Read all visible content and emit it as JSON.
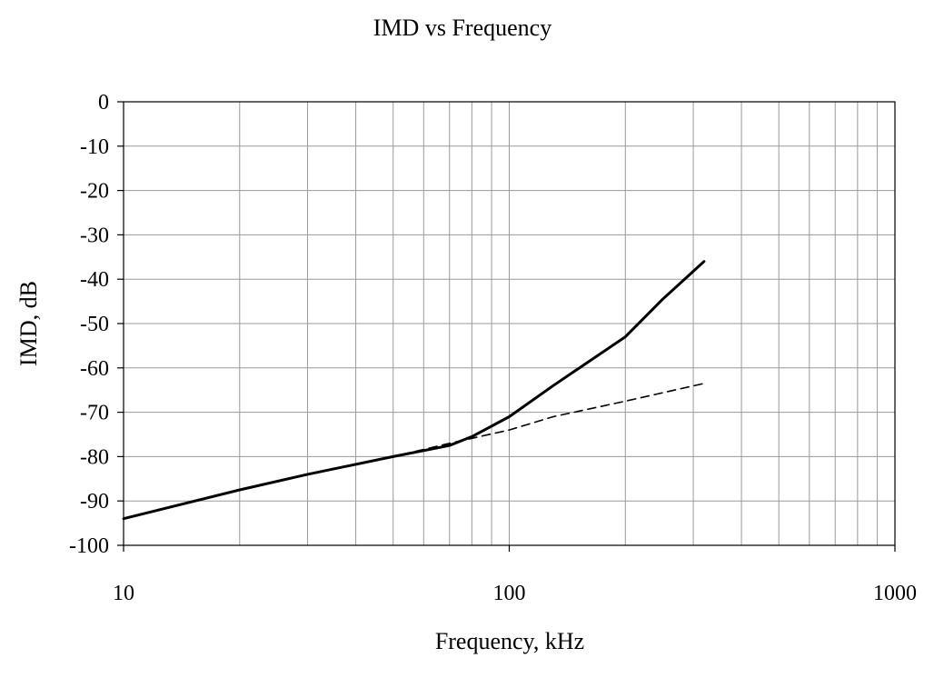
{
  "chart_data": {
    "type": "line",
    "title": "IMD vs Frequency",
    "xlabel": "Frequency, kHz",
    "ylabel": "IMD, dB",
    "xscale": "log",
    "xlim": [
      10,
      1000
    ],
    "ylim": [
      -100,
      0
    ],
    "grid": true,
    "x_ticks": [
      {
        "value": 10,
        "label": "10"
      },
      {
        "value": 100,
        "label": "100"
      },
      {
        "value": 1000,
        "label": "1000"
      }
    ],
    "y_ticks": [
      {
        "value": 0,
        "label": "0"
      },
      {
        "value": -10,
        "label": "-10"
      },
      {
        "value": -20,
        "label": "-20"
      },
      {
        "value": -30,
        "label": "-30"
      },
      {
        "value": -40,
        "label": "-40"
      },
      {
        "value": -50,
        "label": "-50"
      },
      {
        "value": -60,
        "label": "-60"
      },
      {
        "value": -70,
        "label": "-70"
      },
      {
        "value": -80,
        "label": "-80"
      },
      {
        "value": -90,
        "label": "-90"
      },
      {
        "value": -100,
        "label": "-100"
      }
    ],
    "series": [
      {
        "style": "solid",
        "color": "#000000",
        "x": [
          10,
          20,
          30,
          50,
          70,
          80,
          100,
          130,
          200,
          250,
          320
        ],
        "y": [
          -94,
          -87.5,
          -84,
          -80,
          -77.5,
          -75.5,
          -71,
          -64,
          -53,
          -44.5,
          -36
        ]
      },
      {
        "style": "dashed",
        "color": "#000000",
        "x": [
          10,
          20,
          30,
          50,
          70,
          100,
          130,
          200,
          320
        ],
        "y": [
          -94,
          -87.5,
          -84,
          -80,
          -77,
          -74,
          -71,
          -67.5,
          -63.5
        ]
      }
    ]
  }
}
